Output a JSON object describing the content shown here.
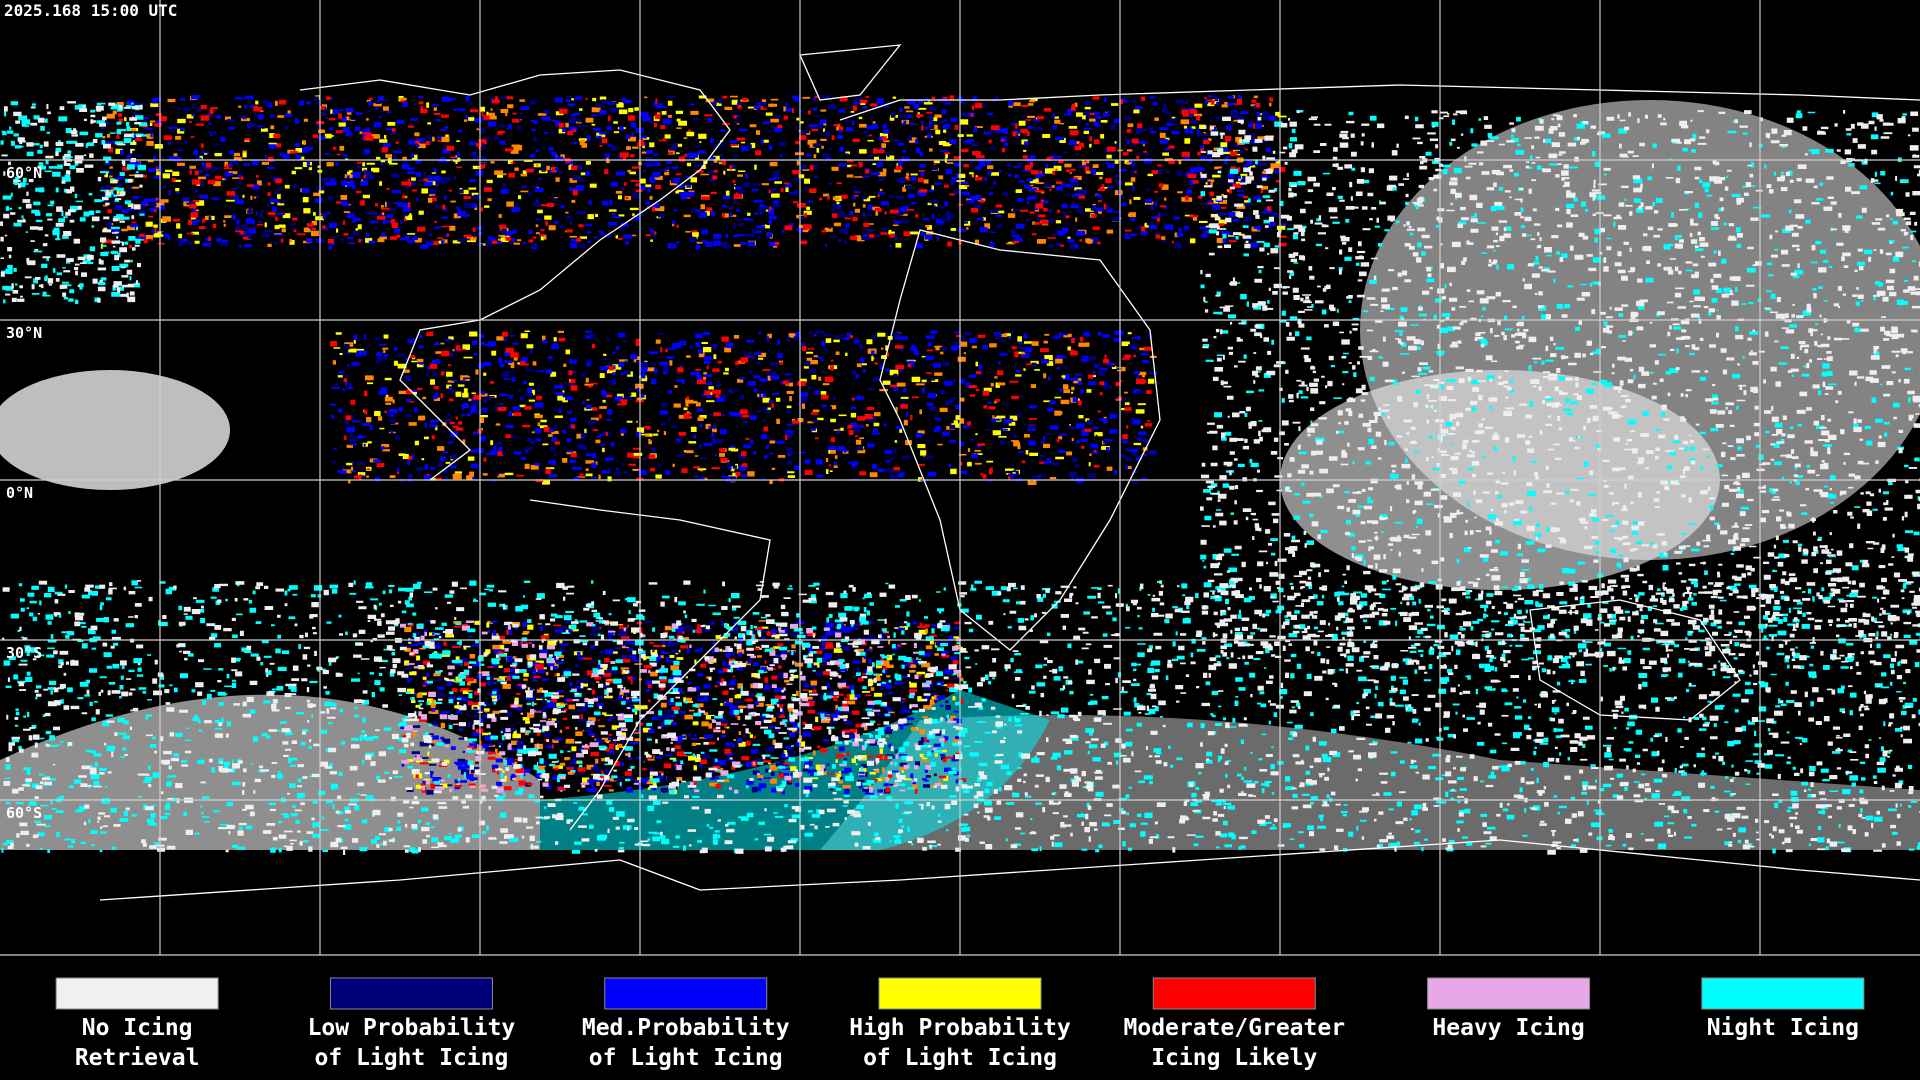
{
  "header": {
    "timestamp": "2025.168 15:00 UTC"
  },
  "map": {
    "latitude_labels": [
      "60°N",
      "30°N",
      "0°N",
      "30°S",
      "60°S"
    ]
  },
  "legend": {
    "items": [
      {
        "lines": [
          "No Icing",
          "Retrieval"
        ],
        "color": "#f0f0f0"
      },
      {
        "lines": [
          "Low Probability",
          "of Light Icing"
        ],
        "color": "#00007a"
      },
      {
        "lines": [
          "Med.Probability",
          "of Light Icing"
        ],
        "color": "#0000ff"
      },
      {
        "lines": [
          "High Probability",
          "of Light Icing"
        ],
        "color": "#ffff00"
      },
      {
        "lines": [
          "Moderate/Greater",
          "Icing Likely"
        ],
        "color": "#ff0000"
      },
      {
        "lines": [
          "Heavy Icing"
        ],
        "color": "#e8a8e8"
      },
      {
        "lines": [
          "Night Icing"
        ],
        "color": "#00ffff"
      }
    ]
  }
}
